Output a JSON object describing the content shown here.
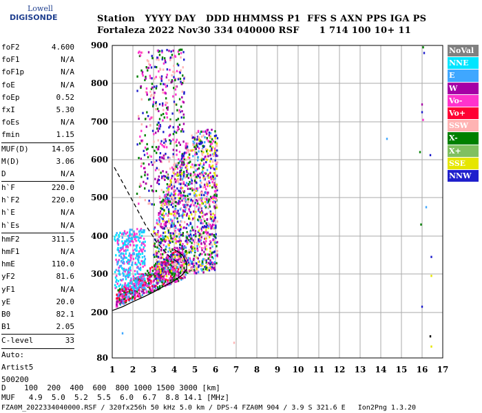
{
  "logo": {
    "line1": "Lowell",
    "line2": "DIGISONDE"
  },
  "header": {
    "row1": "Station   YYYY DAY   DDD HHMMSS P1  FFS S AXN PPS IGA PS",
    "row2": "Fortaleza 2022 Nov30 334 040000 RSF      1 714 100 10+ 11"
  },
  "params_group1": [
    {
      "name": "foF2",
      "value": "4.600"
    },
    {
      "name": "foF1",
      "value": "N/A"
    },
    {
      "name": "foF1p",
      "value": "N/A"
    },
    {
      "name": "foE",
      "value": "N/A"
    },
    {
      "name": "foEp",
      "value": "0.52"
    },
    {
      "name": "fxI",
      "value": "5.30"
    },
    {
      "name": "foEs",
      "value": "N/A"
    },
    {
      "name": "fmin",
      "value": "1.15"
    }
  ],
  "params_group2": [
    {
      "name": "MUF(D)",
      "value": "14.05"
    },
    {
      "name": "M(D)",
      "value": "3.06"
    },
    {
      "name": "D",
      "value": "N/A"
    }
  ],
  "params_group3": [
    {
      "name": "h`F",
      "value": "220.0"
    },
    {
      "name": "h`F2",
      "value": "220.0"
    },
    {
      "name": "h`E",
      "value": "N/A"
    },
    {
      "name": "h`Es",
      "value": "N/A"
    }
  ],
  "params_group4": [
    {
      "name": "hmF2",
      "value": "311.5"
    },
    {
      "name": "hmF1",
      "value": "N/A"
    },
    {
      "name": "hmE",
      "value": "110.0"
    },
    {
      "name": "yF2",
      "value": "81.6"
    },
    {
      "name": "yF1",
      "value": "N/A"
    },
    {
      "name": "yE",
      "value": "20.0"
    },
    {
      "name": "B0",
      "value": "82.1"
    },
    {
      "name": "B1",
      "value": "2.05"
    }
  ],
  "clevel": {
    "name": "C-level",
    "value": "33"
  },
  "auto": {
    "line1": "Auto:",
    "line2": "Artist5",
    "line3": "500200"
  },
  "bottom": {
    "d_row": "D    100  200  400  600  800 1000 1500 3000 [km]",
    "muf_row": "MUF   4.9  5.0  5.2  5.5  6.0  6.7  8.8 14.1 [MHz]",
    "file_row": "FZA0M_2022334040000.RSF / 320fx256h 50 kHz 5.0 km / DPS-4 FZA0M 904 / 3.9 S 321.6 E   Ion2Png 1.3.20"
  },
  "legend": [
    {
      "label": "NoVal",
      "color": "#808080"
    },
    {
      "label": "NNE",
      "color": "#00e5ff"
    },
    {
      "label": "E",
      "color": "#3fa7ff"
    },
    {
      "label": "W",
      "color": "#a600a6"
    },
    {
      "label": "Vo-",
      "color": "#ff33cc"
    },
    {
      "label": "Vo+",
      "color": "#ff0033"
    },
    {
      "label": "SSW",
      "color": "#ffb3b3"
    },
    {
      "label": "X-",
      "color": "#008000"
    },
    {
      "label": "X+",
      "color": "#80c060"
    },
    {
      "label": "SSE",
      "color": "#e6e600"
    },
    {
      "label": "NNW",
      "color": "#1f1fcc"
    }
  ],
  "chart_data": {
    "type": "scatter",
    "title": "",
    "xlabel": "",
    "ylabel": "",
    "xlim": [
      1,
      17
    ],
    "ylim": [
      80,
      900
    ],
    "x_ticks": [
      "1",
      "2",
      "3",
      "4",
      "5",
      "6",
      "7",
      "8",
      "9",
      "10",
      "11",
      "12",
      "13",
      "14",
      "15",
      "16",
      "17"
    ],
    "y_ticks": [
      "80",
      "200",
      "300",
      "400",
      "500",
      "600",
      "700",
      "800",
      "900"
    ],
    "y_tick_values": [
      80,
      200,
      300,
      400,
      500,
      600,
      700,
      800,
      900
    ],
    "grid": true,
    "scatter_clusters": [
      {
        "name": "O-trace",
        "x_range": [
          1.2,
          4.6
        ],
        "y_start": [
          215,
          255
        ],
        "y_end": [
          290,
          380
        ],
        "color_mix": [
          "#ff33cc",
          "#ff0033",
          "#a600a6",
          "#008000",
          "#3fa7ff"
        ]
      },
      {
        "name": "spread-F",
        "x_range": [
          3.0,
          6.1
        ],
        "y_range": [
          280,
          680
        ],
        "color_mix": [
          "#ff33cc",
          "#a600a6",
          "#008000",
          "#3fa7ff",
          "#e6e600",
          "#1f1fcc",
          "#ffb3b3"
        ]
      },
      {
        "name": "low-E-returns",
        "x_range": [
          1.1,
          2.6
        ],
        "y_range": [
          260,
          420
        ],
        "color_mix": [
          "#3fa7ff",
          "#00e5ff",
          "#ff33cc"
        ]
      },
      {
        "name": "high-spread",
        "x_range": [
          2.2,
          4.5
        ],
        "y_range": [
          480,
          890
        ],
        "color_mix": [
          "#a600a6",
          "#ff33cc",
          "#1f1fcc",
          "#008000",
          "#ffb3b3"
        ]
      }
    ],
    "isolated_points": [
      {
        "x": 16.05,
        "y": 895,
        "color": "#008000"
      },
      {
        "x": 16.1,
        "y": 880,
        "color": "#1f1fcc"
      },
      {
        "x": 16.0,
        "y": 745,
        "color": "#a600a6"
      },
      {
        "x": 16.0,
        "y": 725,
        "color": "#1f1fcc"
      },
      {
        "x": 16.05,
        "y": 705,
        "color": "#ff33cc"
      },
      {
        "x": 16.4,
        "y": 612,
        "color": "#1f1fcc"
      },
      {
        "x": 15.9,
        "y": 620,
        "color": "#008000"
      },
      {
        "x": 16.2,
        "y": 475,
        "color": "#3fa7ff"
      },
      {
        "x": 15.95,
        "y": 430,
        "color": "#008000"
      },
      {
        "x": 16.45,
        "y": 345,
        "color": "#1f1fcc"
      },
      {
        "x": 16.45,
        "y": 295,
        "color": "#e6e600"
      },
      {
        "x": 16.0,
        "y": 215,
        "color": "#1f1fcc"
      },
      {
        "x": 16.4,
        "y": 137,
        "color": "#000000"
      },
      {
        "x": 16.45,
        "y": 110,
        "color": "#e6e600"
      },
      {
        "x": 14.3,
        "y": 655,
        "color": "#3fa7ff"
      },
      {
        "x": 6.9,
        "y": 120,
        "color": "#ffb3b3"
      },
      {
        "x": 1.5,
        "y": 145,
        "color": "#3fa7ff"
      }
    ],
    "curves": [
      {
        "name": "profile-solid",
        "style": "solid",
        "color": "#000000",
        "points": [
          [
            1,
            205
          ],
          [
            1.5,
            215
          ],
          [
            2.0,
            228
          ],
          [
            2.5,
            240
          ],
          [
            3.0,
            253
          ],
          [
            3.5,
            268
          ],
          [
            4.0,
            282
          ],
          [
            4.4,
            298
          ],
          [
            4.6,
            312
          ],
          [
            4.6,
            330
          ],
          [
            4.4,
            350
          ],
          [
            4.0,
            365
          ]
        ]
      },
      {
        "name": "profile-dashed",
        "style": "dashed",
        "color": "#000000",
        "points": [
          [
            1.1,
            580
          ],
          [
            1.5,
            540
          ],
          [
            2.0,
            490
          ],
          [
            2.6,
            430
          ],
          [
            3.2,
            380
          ],
          [
            3.8,
            345
          ],
          [
            4.2,
            330
          ]
        ]
      }
    ]
  }
}
